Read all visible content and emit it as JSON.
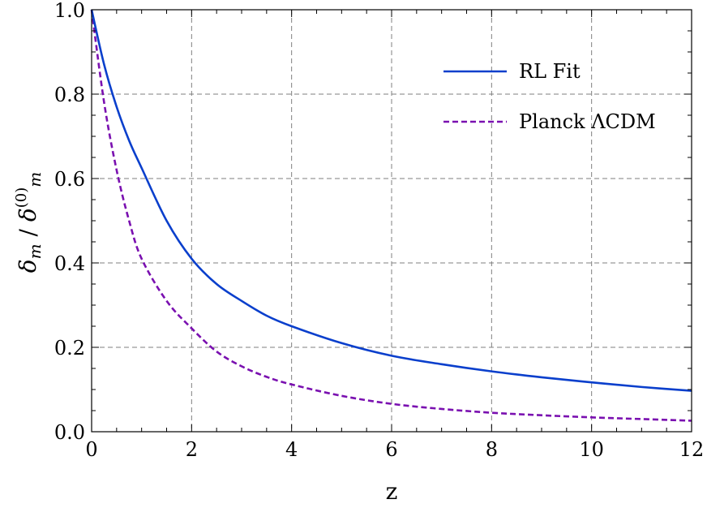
{
  "chart_data": {
    "type": "line",
    "xlabel": "z",
    "ylabel": "δm / δ(0)m",
    "xlim": [
      0,
      12
    ],
    "ylim": [
      0,
      1.0
    ],
    "xticks": [
      0,
      2,
      4,
      6,
      8,
      10,
      12
    ],
    "yticks": [
      0.0,
      0.2,
      0.4,
      0.6,
      0.8,
      1.0
    ],
    "xtick_labels": [
      "0",
      "2",
      "4",
      "6",
      "8",
      "10",
      "12"
    ],
    "ytick_labels": [
      "0.0",
      "0.2",
      "0.4",
      "0.6",
      "0.8",
      "1.0"
    ],
    "grid": true,
    "legend_position": "top-right",
    "series": [
      {
        "name": "RL Fit",
        "color": "#0a3fcc",
        "style": "solid",
        "x": [
          0,
          0.25,
          0.5,
          0.75,
          1,
          1.5,
          2,
          2.5,
          3,
          3.5,
          4,
          5,
          6,
          7,
          8,
          9,
          10,
          11,
          12
        ],
        "y": [
          1.0,
          0.87,
          0.77,
          0.69,
          0.625,
          0.5,
          0.41,
          0.35,
          0.31,
          0.275,
          0.25,
          0.21,
          0.18,
          0.16,
          0.143,
          0.129,
          0.117,
          0.106,
          0.097
        ]
      },
      {
        "name": "Planck ΛCDM",
        "color": "#7a10b0",
        "style": "dashed",
        "x": [
          0,
          0.25,
          0.5,
          0.75,
          1,
          1.5,
          2,
          2.5,
          3,
          3.5,
          4,
          5,
          6,
          7,
          8,
          9,
          10,
          11,
          12
        ],
        "y": [
          1.0,
          0.78,
          0.62,
          0.5,
          0.41,
          0.31,
          0.245,
          0.19,
          0.155,
          0.13,
          0.112,
          0.085,
          0.066,
          0.054,
          0.045,
          0.039,
          0.034,
          0.03,
          0.026
        ]
      }
    ]
  }
}
